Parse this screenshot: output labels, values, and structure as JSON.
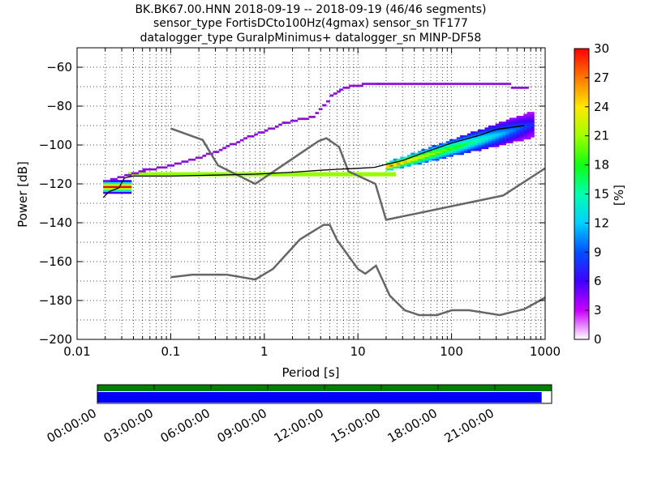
{
  "chart_data": {
    "type": "heatmap",
    "title_lines": [
      "BK.BK67.00.HNN   2018-09-19 -- 2018-09-19  (46/46 segments)",
      "sensor_type FortisDCto100Hz(4gmax) sensor_sn TF177",
      "datalogger_type GuralpMinimus+ datalogger_sn MINP-DF58"
    ],
    "xlabel": "Period [s]",
    "ylabel": "Power [dB]",
    "xscale": "log",
    "xlim": [
      0.01,
      1000
    ],
    "ylim": [
      -200,
      -50
    ],
    "xticks": [
      {
        "value": 0.01,
        "label": "0.01"
      },
      {
        "value": 0.1,
        "label": "0.1"
      },
      {
        "value": 1,
        "label": "1"
      },
      {
        "value": 10,
        "label": "10"
      },
      {
        "value": 100,
        "label": "100"
      },
      {
        "value": 1000,
        "label": "1000"
      }
    ],
    "yticks": [
      {
        "value": -60,
        "label": "−60"
      },
      {
        "value": -80,
        "label": "−80"
      },
      {
        "value": -100,
        "label": "−100"
      },
      {
        "value": -120,
        "label": "−120"
      },
      {
        "value": -140,
        "label": "−140"
      },
      {
        "value": -160,
        "label": "−160"
      },
      {
        "value": -180,
        "label": "−180"
      },
      {
        "value": -200,
        "label": "−200"
      }
    ],
    "grid": "dotted",
    "colorbar": {
      "label": "[%]",
      "range": [
        0,
        30
      ],
      "ticks": [
        {
          "value": 0,
          "label": "0"
        },
        {
          "value": 3,
          "label": "3"
        },
        {
          "value": 6,
          "label": "6"
        },
        {
          "value": 9,
          "label": "9"
        },
        {
          "value": 12,
          "label": "12"
        },
        {
          "value": 15,
          "label": "15"
        },
        {
          "value": 18,
          "label": "18"
        },
        {
          "value": 21,
          "label": "21"
        },
        {
          "value": 24,
          "label": "24"
        },
        {
          "value": 27,
          "label": "27"
        },
        {
          "value": 30,
          "label": "30"
        }
      ]
    },
    "noise_model_low": [
      [
        0.1,
        -168
      ],
      [
        0.17,
        -166.7
      ],
      [
        0.4,
        -166.7
      ],
      [
        0.8,
        -169.2
      ],
      [
        1.24,
        -163.7
      ],
      [
        2.4,
        -148.6
      ],
      [
        4.3,
        -141.1
      ],
      [
        5.0,
        -141.1
      ],
      [
        6.0,
        -149.0
      ],
      [
        10.0,
        -163.8
      ],
      [
        12.0,
        -166.2
      ],
      [
        15.6,
        -162.1
      ],
      [
        21.9,
        -177.5
      ],
      [
        31.6,
        -185.0
      ],
      [
        45.0,
        -187.5
      ],
      [
        70.0,
        -187.5
      ],
      [
        101.0,
        -185.0
      ],
      [
        154.0,
        -185.0
      ],
      [
        328.0,
        -187.5
      ],
      [
        600.0,
        -184.4
      ],
      [
        1000.0,
        -178.5
      ]
    ],
    "noise_model_high": [
      [
        0.1,
        -91.5
      ],
      [
        0.22,
        -97.4
      ],
      [
        0.32,
        -110.5
      ],
      [
        0.8,
        -120.0
      ],
      [
        3.8,
        -98.0
      ],
      [
        4.6,
        -96.5
      ],
      [
        6.3,
        -101.0
      ],
      [
        7.9,
        -113.5
      ],
      [
        15.4,
        -120.0
      ],
      [
        20.0,
        -138.5
      ],
      [
        354.8,
        -126.0
      ],
      [
        1000.0,
        -112.0
      ]
    ],
    "mean_curve": [
      [
        0.019,
        -127
      ],
      [
        0.022,
        -124
      ],
      [
        0.028,
        -122
      ],
      [
        0.032,
        -117
      ],
      [
        0.04,
        -116
      ],
      [
        0.1,
        -116
      ],
      [
        0.3,
        -115.5
      ],
      [
        0.8,
        -115
      ],
      [
        2.0,
        -114
      ],
      [
        4.0,
        -113
      ],
      [
        6.0,
        -112.5
      ],
      [
        10.0,
        -112
      ],
      [
        15.0,
        -111.5
      ],
      [
        20.0,
        -110
      ],
      [
        30.0,
        -108
      ],
      [
        50.0,
        -104
      ],
      [
        100.0,
        -99
      ],
      [
        200.0,
        -95
      ],
      [
        300.0,
        -92
      ],
      [
        600.0,
        -90
      ]
    ],
    "ppsd_bands": [
      {
        "type": "flat",
        "start": 0.035,
        "end": 25,
        "level": -115.5,
        "spread": 1.3,
        "ramp": [
          0.035,
          0.006,
          20,
          0.1
        ]
      },
      {
        "type": "flat",
        "start": 0.019,
        "end": 0.035,
        "level": -122,
        "spread": 3,
        "ramp": [
          0.019,
          0.02,
          0.035,
          0.02
        ]
      },
      {
        "type": "fan",
        "start": 20,
        "end": 700,
        "center": [
          -111.5,
          -90
        ],
        "halfwidth": [
          2,
          6
        ],
        "pmax": 12
      },
      {
        "type": "stair",
        "points": [
          [
            0.019,
            -119.5
          ],
          [
            0.05,
            -113.5
          ],
          [
            0.1,
            -111
          ],
          [
            0.3,
            -104
          ],
          [
            0.6,
            -97
          ],
          [
            1.0,
            -93
          ],
          [
            1.6,
            -89
          ],
          [
            2.5,
            -87
          ],
          [
            3.2,
            -86
          ],
          [
            4.2,
            -80
          ],
          [
            5.0,
            -75
          ],
          [
            6.3,
            -72
          ],
          [
            8.0,
            -70.5
          ],
          [
            11.0,
            -69.5
          ],
          [
            16.0,
            -69
          ],
          [
            400.0,
            -69
          ]
        ],
        "color": "#8a10d8"
      },
      {
        "type": "stair",
        "points": [
          [
            430,
            -71
          ],
          [
            650,
            -71
          ]
        ],
        "color": "#8a10d8"
      }
    ],
    "time_axis": {
      "labels": [
        "00:00:00",
        "03:00:00",
        "06:00:00",
        "09:00:00",
        "12:00:00",
        "15:00:00",
        "18:00:00",
        "21:00:00"
      ],
      "range_hours": [
        0,
        24
      ],
      "data_coverage": 1.0,
      "gap_coverage": 0.978,
      "coverage_color": "#008000",
      "data_color": "#0000ff"
    }
  }
}
